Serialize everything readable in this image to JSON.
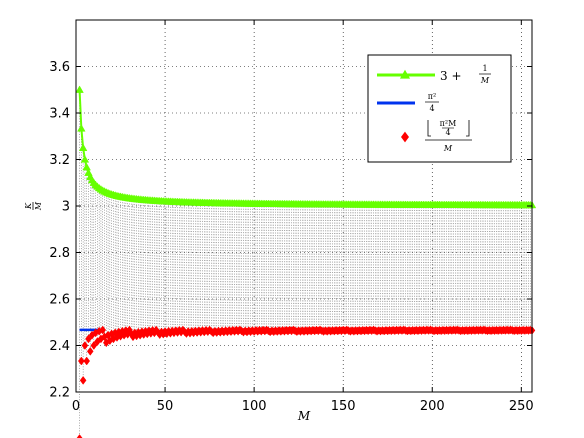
{
  "chart_data": {
    "type": "line",
    "xlabel": "M",
    "ylabel_num": "K",
    "ylabel_den": "M",
    "xlim": [
      0,
      256
    ],
    "ylim": [
      2.2,
      3.8
    ],
    "xticks": [
      0,
      50,
      100,
      150,
      200,
      250
    ],
    "yticks": [
      2.2,
      2.4,
      2.6,
      2.8,
      3.0,
      3.2,
      3.4,
      3.6
    ],
    "ytick_labels": [
      "2.2",
      "2.4",
      "2.6",
      "2.8",
      "3",
      "3.2",
      "3.4",
      "3.6"
    ],
    "grid": true,
    "legend_position": "top-right",
    "series": [
      {
        "name": "3 + 1/M",
        "legend_main": "3 +",
        "legend_num": "1",
        "legend_den": "M",
        "formula": "3 + 1/M",
        "color": "#66ff00",
        "marker": "triangle",
        "x_range": [
          2,
          256
        ]
      },
      {
        "name": "π²/4",
        "legend_num": "π²",
        "legend_den": "4",
        "formula": "pi^2/4",
        "color": "#0033ee",
        "marker": "none",
        "x_range": [
          2,
          16
        ]
      },
      {
        "name": "⌊π²M/4⌋/M",
        "legend_num": "π²M",
        "legend_num_den": "4",
        "legend_den": "M",
        "formula": "floor(pi^2*M/4)/M",
        "color": "#ff0000",
        "marker": "diamond",
        "x_range": [
          2,
          256
        ]
      }
    ]
  }
}
